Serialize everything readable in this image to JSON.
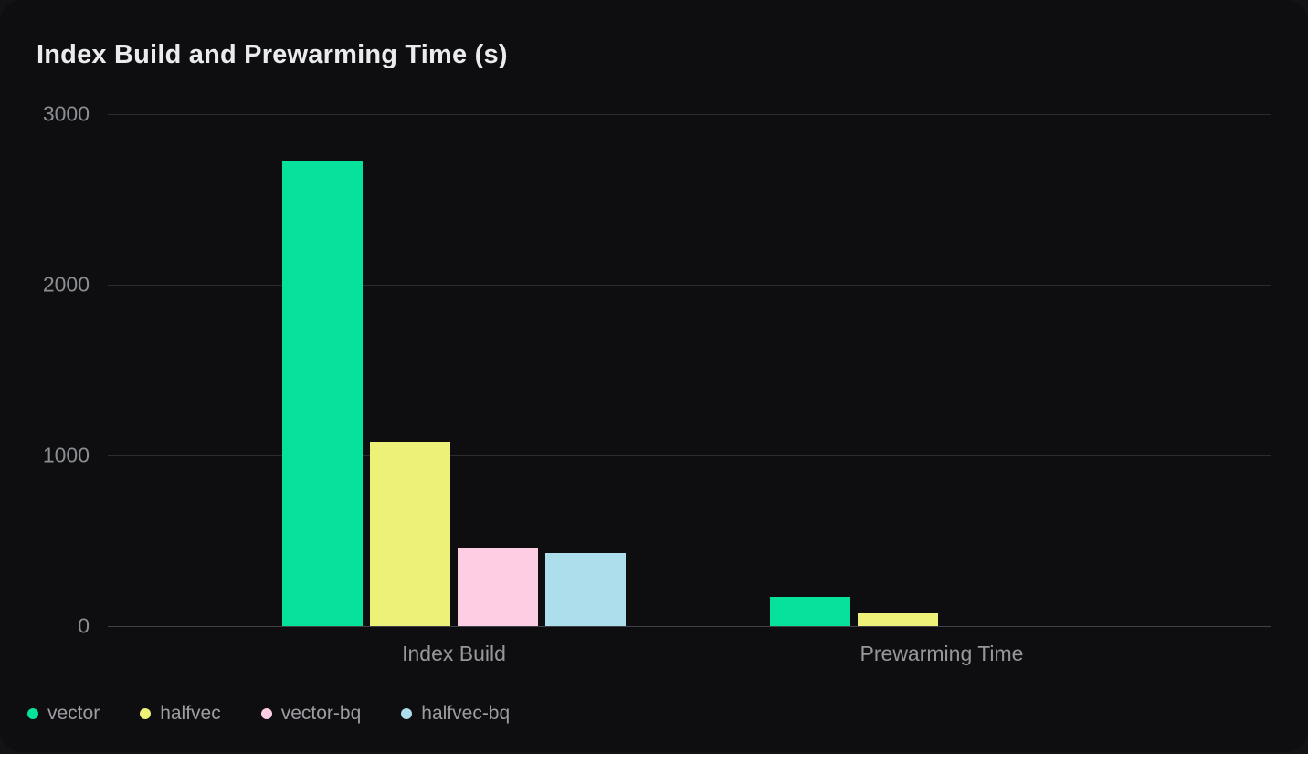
{
  "chart_data": {
    "type": "bar",
    "title": "Index Build and Prewarming Time (s)",
    "categories": [
      "Index Build",
      "Prewarming Time"
    ],
    "series": [
      {
        "name": "vector",
        "color": "#06e29b",
        "values": [
          2730,
          170
        ]
      },
      {
        "name": "halfvec",
        "color": "#eef177",
        "values": [
          1080,
          75
        ]
      },
      {
        "name": "vector-bq",
        "color": "#fdcde3",
        "values": [
          460,
          0
        ]
      },
      {
        "name": "halfvec-bq",
        "color": "#addeeb",
        "values": [
          430,
          0
        ]
      }
    ],
    "ylabel": "",
    "xlabel": "",
    "yticks": [
      0,
      1000,
      2000,
      3000
    ],
    "ylim": [
      0,
      3000
    ],
    "grid": true,
    "background": "#0e0e10",
    "legend_position": "bottom-left"
  }
}
